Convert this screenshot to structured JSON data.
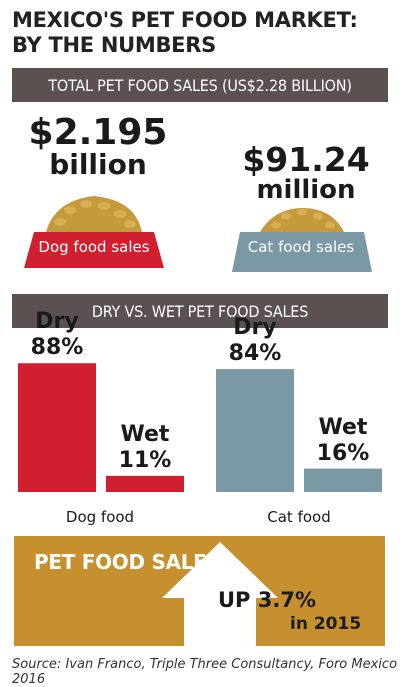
{
  "title_line1": "MEXICO'S PET FOOD MARKET:",
  "title_line2": "BY THE NUMBERS",
  "total_band": "TOTAL PET FOOD SALES (US$2.28 BILLION)",
  "dog_amount": "$2.195",
  "dog_unit": "billion",
  "dog_label": "Dog food sales",
  "cat_amount": "$91.24",
  "cat_unit": "million",
  "cat_label": "Cat food sales",
  "drywet_band": "DRY VS. WET PET FOOD SALES",
  "colors": {
    "dog": "#d01f2e",
    "cat": "#7b99a4",
    "band": "#5a5150",
    "orange": "#c6902f",
    "kibble": "#c59a3c"
  },
  "chart_data": {
    "type": "bar",
    "categories": [
      "Dog food",
      "Cat food"
    ],
    "series": [
      {
        "name": "Dry",
        "values": [
          88,
          84
        ]
      },
      {
        "name": "Wet",
        "values": [
          11,
          16
        ]
      }
    ],
    "title": "DRY VS. WET PET FOOD SALES",
    "ylim": [
      0,
      100
    ],
    "data_labels": {
      "dog": {
        "dry": "88%",
        "wet": "11%"
      },
      "cat": {
        "dry": "84%",
        "wet": "16%"
      }
    }
  },
  "growth": {
    "heading": "PET FOOD SALES",
    "value": "UP 3.7%",
    "year": "in 2015"
  },
  "source": "Source: Ivan Franco, Triple Three Consultancy, Foro Mexico 2016"
}
